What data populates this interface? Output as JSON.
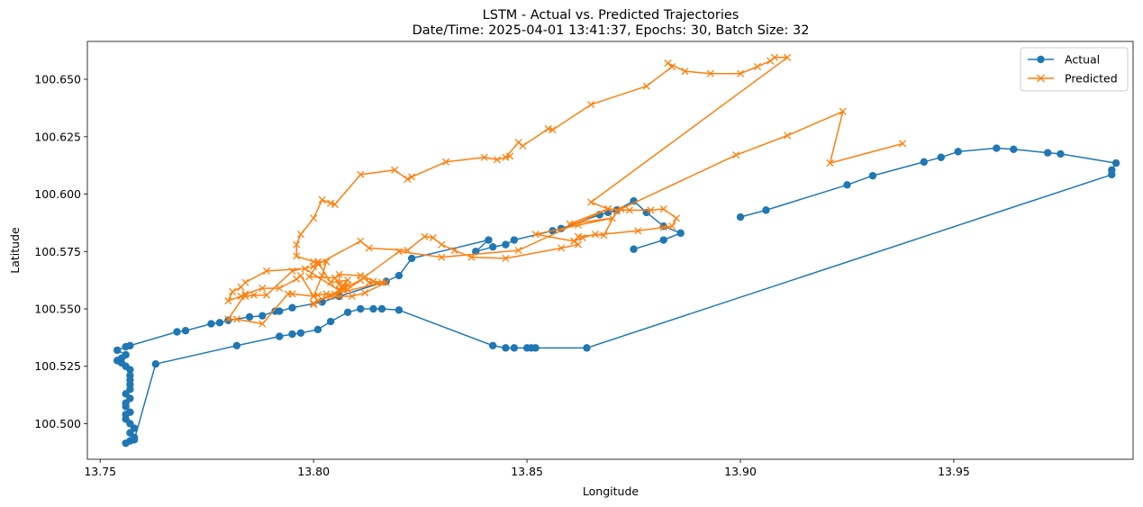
{
  "chart_data": {
    "type": "line",
    "title": "LSTM - Actual vs. Predicted Trajectories",
    "subtitle": "Date/Time: 2025-04-01 13:41:37, Epochs: 30, Batch Size: 32",
    "xlabel": "Longitude",
    "ylabel": "Latitude",
    "xlim": [
      13.747,
      13.992
    ],
    "ylim": [
      100.4845,
      100.6665
    ],
    "xticks": [
      "13.75",
      "13.80",
      "13.85",
      "13.90",
      "13.95"
    ],
    "xtick_values": [
      13.75,
      13.8,
      13.85,
      13.9,
      13.95
    ],
    "yticks": [
      "100.500",
      "100.525",
      "100.550",
      "100.575",
      "100.600",
      "100.625",
      "100.650"
    ],
    "ytick_values": [
      100.5,
      100.525,
      100.55,
      100.575,
      100.6,
      100.625,
      100.65
    ],
    "grid": false,
    "legend_position": "top-right",
    "series": [
      {
        "name": "Actual",
        "color": "#1f77b4",
        "marker": "circle",
        "points": [
          [
            13.875,
            100.576
          ],
          [
            13.882,
            100.58
          ],
          [
            13.886,
            100.583
          ],
          [
            13.882,
            100.586
          ],
          [
            13.878,
            100.592
          ],
          [
            13.875,
            100.597
          ],
          [
            13.871,
            100.593
          ],
          [
            13.869,
            100.592
          ],
          [
            13.867,
            100.591
          ],
          [
            13.858,
            100.585
          ],
          [
            13.856,
            100.584
          ],
          [
            13.847,
            100.58
          ],
          [
            13.845,
            100.578
          ],
          [
            13.842,
            100.577
          ],
          [
            13.838,
            100.575
          ],
          [
            13.841,
            100.58
          ],
          [
            13.823,
            100.572
          ],
          [
            13.82,
            100.5645
          ],
          [
            13.817,
            100.562
          ],
          [
            13.806,
            100.5555
          ],
          [
            13.802,
            100.553
          ],
          [
            13.795,
            100.5505
          ],
          [
            13.792,
            100.549
          ],
          [
            13.791,
            100.549
          ],
          [
            13.788,
            100.547
          ],
          [
            13.785,
            100.5465
          ],
          [
            13.78,
            100.545
          ],
          [
            13.778,
            100.544
          ],
          [
            13.776,
            100.5435
          ],
          [
            13.77,
            100.5405
          ],
          [
            13.768,
            100.54
          ],
          [
            13.757,
            100.534
          ],
          [
            13.756,
            100.5335
          ],
          [
            13.754,
            100.532
          ],
          [
            13.756,
            100.53
          ],
          [
            13.755,
            100.5285
          ],
          [
            13.754,
            100.5275
          ],
          [
            13.755,
            100.5265
          ],
          [
            13.756,
            100.525
          ],
          [
            13.757,
            100.5235
          ],
          [
            13.757,
            100.521
          ],
          [
            13.757,
            100.519
          ],
          [
            13.757,
            100.517
          ],
          [
            13.757,
            100.515
          ],
          [
            13.756,
            100.513
          ],
          [
            13.757,
            100.511
          ],
          [
            13.756,
            100.509
          ],
          [
            13.756,
            100.5075
          ],
          [
            13.757,
            100.505
          ],
          [
            13.756,
            100.504
          ],
          [
            13.756,
            100.502
          ],
          [
            13.757,
            100.5
          ],
          [
            13.758,
            100.498
          ],
          [
            13.757,
            100.496
          ],
          [
            13.758,
            100.494
          ],
          [
            13.757,
            100.4925
          ],
          [
            13.756,
            100.4915
          ],
          [
            13.758,
            100.493
          ],
          [
            13.763,
            100.526
          ],
          [
            13.782,
            100.534
          ],
          [
            13.792,
            100.538
          ],
          [
            13.795,
            100.539
          ],
          [
            13.797,
            100.5395
          ],
          [
            13.801,
            100.541
          ],
          [
            13.804,
            100.5445
          ],
          [
            13.808,
            100.5485
          ],
          [
            13.811,
            100.55
          ],
          [
            13.814,
            100.55
          ],
          [
            13.816,
            100.55
          ],
          [
            13.82,
            100.5495
          ],
          [
            13.842,
            100.534
          ],
          [
            13.845,
            100.533
          ],
          [
            13.847,
            100.533
          ],
          [
            13.85,
            100.533
          ],
          [
            13.851,
            100.533
          ],
          [
            13.852,
            100.533
          ],
          [
            13.864,
            100.533
          ],
          [
            13.987,
            100.6085
          ],
          [
            13.987,
            100.6105
          ],
          [
            13.988,
            100.6135
          ],
          [
            13.975,
            100.6175
          ],
          [
            13.972,
            100.618
          ],
          [
            13.964,
            100.6195
          ],
          [
            13.96,
            100.62
          ],
          [
            13.951,
            100.6185
          ],
          [
            13.947,
            100.616
          ],
          [
            13.943,
            100.614
          ],
          [
            13.931,
            100.608
          ],
          [
            13.925,
            100.604
          ],
          [
            13.906,
            100.593
          ],
          [
            13.9,
            100.59
          ]
        ]
      },
      {
        "name": "Predicted",
        "color": "#ff7f0e",
        "marker": "x",
        "points": [
          [
            13.938,
            100.622
          ],
          [
            13.921,
            100.6135
          ],
          [
            13.924,
            100.636
          ],
          [
            13.911,
            100.6255
          ],
          [
            13.899,
            100.617
          ],
          [
            13.872,
            100.5935
          ],
          [
            13.871,
            100.5925
          ],
          [
            13.868,
            100.582
          ],
          [
            13.866,
            100.5825
          ],
          [
            13.863,
            100.581
          ],
          [
            13.861,
            100.5795
          ],
          [
            13.862,
            100.578
          ],
          [
            13.858,
            100.5765
          ],
          [
            13.845,
            100.572
          ],
          [
            13.837,
            100.5725
          ],
          [
            13.833,
            100.5755
          ],
          [
            13.83,
            100.578
          ],
          [
            13.828,
            100.581
          ],
          [
            13.826,
            100.5815
          ],
          [
            13.822,
            100.5755
          ],
          [
            13.813,
            100.5765
          ],
          [
            13.811,
            100.5795
          ],
          [
            13.801,
            100.5695
          ],
          [
            13.799,
            100.564
          ],
          [
            13.805,
            100.5635
          ],
          [
            13.806,
            100.5605
          ],
          [
            13.806,
            100.565
          ],
          [
            13.811,
            100.5645
          ],
          [
            13.813,
            100.5615
          ],
          [
            13.816,
            100.5615
          ],
          [
            13.805,
            100.5565
          ],
          [
            13.803,
            100.5565
          ],
          [
            13.801,
            100.556
          ],
          [
            13.8,
            100.5555
          ],
          [
            13.795,
            100.5565
          ],
          [
            13.794,
            100.5565
          ],
          [
            13.788,
            100.5435
          ],
          [
            13.782,
            100.5455
          ],
          [
            13.78,
            100.5455
          ],
          [
            13.784,
            100.5565
          ],
          [
            13.788,
            100.559
          ],
          [
            13.792,
            100.559
          ],
          [
            13.796,
            100.563
          ],
          [
            13.797,
            100.5645
          ],
          [
            13.8,
            100.5555
          ],
          [
            13.802,
            100.5645
          ],
          [
            13.803,
            100.5705
          ],
          [
            13.8,
            100.5705
          ],
          [
            13.796,
            100.573
          ],
          [
            13.796,
            100.578
          ],
          [
            13.797,
            100.5825
          ],
          [
            13.8,
            100.5895
          ],
          [
            13.802,
            100.5975
          ],
          [
            13.804,
            100.596
          ],
          [
            13.805,
            100.5955
          ],
          [
            13.811,
            100.6085
          ],
          [
            13.819,
            100.6105
          ],
          [
            13.822,
            100.6065
          ],
          [
            13.823,
            100.6075
          ],
          [
            13.831,
            100.614
          ],
          [
            13.84,
            100.616
          ],
          [
            13.843,
            100.615
          ],
          [
            13.846,
            100.6165
          ],
          [
            13.845,
            100.616
          ],
          [
            13.848,
            100.6225
          ],
          [
            13.849,
            100.621
          ],
          [
            13.855,
            100.6285
          ],
          [
            13.856,
            100.628
          ],
          [
            13.865,
            100.639
          ],
          [
            13.878,
            100.647
          ],
          [
            13.884,
            100.6555
          ],
          [
            13.883,
            100.657
          ],
          [
            13.887,
            100.6535
          ],
          [
            13.893,
            100.6525
          ],
          [
            13.9,
            100.6525
          ],
          [
            13.904,
            100.6555
          ],
          [
            13.907,
            100.658
          ],
          [
            13.908,
            100.6595
          ],
          [
            13.911,
            100.6595
          ],
          [
            13.865,
            100.5965
          ],
          [
            13.869,
            100.5935
          ],
          [
            13.874,
            100.593
          ],
          [
            13.879,
            100.593
          ],
          [
            13.882,
            100.5935
          ],
          [
            13.885,
            100.5895
          ],
          [
            13.884,
            100.586
          ],
          [
            13.882,
            100.5855
          ],
          [
            13.876,
            100.584
          ],
          [
            13.862,
            100.5815
          ],
          [
            13.861,
            100.5795
          ],
          [
            13.852,
            100.5825
          ],
          [
            13.862,
            100.5865
          ],
          [
            13.87,
            100.5895
          ],
          [
            13.86,
            100.587
          ],
          [
            13.869,
            100.5935
          ],
          [
            13.848,
            100.5755
          ],
          [
            13.83,
            100.5725
          ],
          [
            13.82,
            100.575
          ],
          [
            13.808,
            100.5585
          ],
          [
            13.807,
            100.559
          ],
          [
            13.806,
            100.558
          ],
          [
            13.798,
            100.5675
          ],
          [
            13.789,
            100.5665
          ],
          [
            13.784,
            100.5615
          ],
          [
            13.783,
            100.5595
          ],
          [
            13.781,
            100.5575
          ],
          [
            13.78,
            100.5535
          ],
          [
            13.783,
            100.5555
          ],
          [
            13.784,
            100.5555
          ],
          [
            13.786,
            100.556
          ],
          [
            13.789,
            100.556
          ],
          [
            13.795,
            100.5665
          ],
          [
            13.8,
            100.5685
          ],
          [
            13.801,
            100.5705
          ],
          [
            13.804,
            100.5615
          ],
          [
            13.808,
            100.5625
          ],
          [
            13.806,
            100.5585
          ],
          [
            13.807,
            100.56
          ],
          [
            13.808,
            100.5605
          ],
          [
            13.807,
            100.5585
          ],
          [
            13.8,
            100.5525
          ],
          [
            13.811,
            100.5625
          ],
          [
            13.812,
            100.564
          ],
          [
            13.814,
            100.562
          ],
          [
            13.817,
            100.5615
          ],
          [
            13.812,
            100.557
          ],
          [
            13.809,
            100.5555
          ],
          [
            13.806,
            100.5555
          ],
          [
            13.804,
            100.5555
          ],
          [
            13.801,
            100.5535
          ],
          [
            13.8,
            100.552
          ]
        ]
      }
    ]
  }
}
